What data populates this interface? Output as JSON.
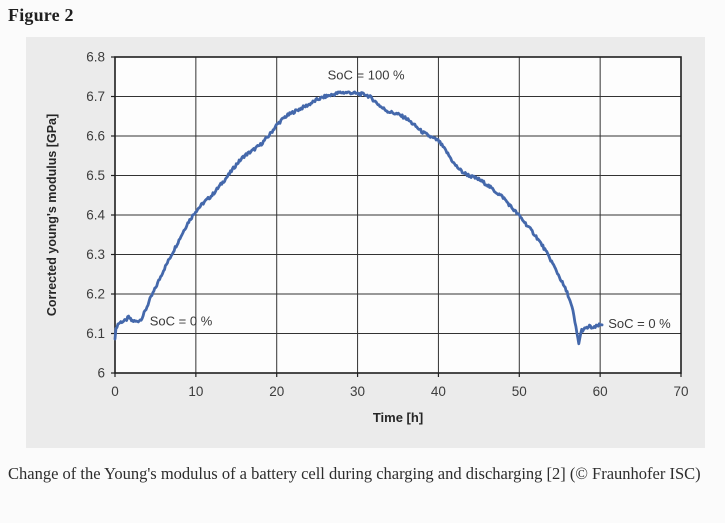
{
  "page": {
    "title": "Figure 2",
    "caption": "Change of the Young's modulus of a battery cell during charging and discharging [2] (© Fraunhofer ISC)"
  },
  "colors": {
    "page_bg": "#fbfbfb",
    "panel_bg": "#ebebeb",
    "plot_bg": "#fdfdfd",
    "grid": "#333333",
    "border": "#1f1f1f",
    "line": "#4468ab",
    "tick_text": "#3d3d3d",
    "axis_text": "#262626",
    "annotation_text": "#3a3a3a"
  },
  "chart_data": {
    "type": "line",
    "title": "",
    "xlabel": "Time [h]",
    "ylabel": "Corrected young's modulus [GPa]",
    "xlim": [
      0,
      70
    ],
    "ylim": [
      6.0,
      6.8
    ],
    "grid": true,
    "legend": "none",
    "xticks": {
      "values": [
        0,
        10,
        20,
        30,
        40,
        50,
        60,
        70
      ],
      "labels": [
        "0",
        "10",
        "20",
        "30",
        "40",
        "50",
        "60",
        "70"
      ]
    },
    "yticks": {
      "values": [
        6.8,
        6.7,
        6.6,
        6.5,
        6.4,
        6.3,
        6.2,
        6.1,
        6.0
      ],
      "labels": [
        "6.8",
        "6.7",
        "6.6",
        "6.5",
        "6.4",
        "6.3",
        "6.2",
        "6.1",
        "6"
      ]
    },
    "series": [
      {
        "name": "Corrected young's modulus",
        "points": [
          [
            0,
            6.09
          ],
          [
            0.15,
            6.115
          ],
          [
            0.4,
            6.125
          ],
          [
            0.8,
            6.13
          ],
          [
            1.3,
            6.132
          ],
          [
            1.7,
            6.142
          ],
          [
            2.0,
            6.133
          ],
          [
            2.6,
            6.13
          ],
          [
            3.1,
            6.134
          ],
          [
            3.4,
            6.142
          ],
          [
            3.8,
            6.16
          ],
          [
            4.3,
            6.185
          ],
          [
            5,
            6.215
          ],
          [
            6,
            6.26
          ],
          [
            7,
            6.3
          ],
          [
            8,
            6.34
          ],
          [
            9,
            6.38
          ],
          [
            10,
            6.41
          ],
          [
            11,
            6.432
          ],
          [
            12,
            6.45
          ],
          [
            13,
            6.475
          ],
          [
            14,
            6.5
          ],
          [
            15,
            6.528
          ],
          [
            16,
            6.55
          ],
          [
            17,
            6.563
          ],
          [
            18,
            6.578
          ],
          [
            19,
            6.6
          ],
          [
            20,
            6.628
          ],
          [
            21,
            6.648
          ],
          [
            22,
            6.66
          ],
          [
            23,
            6.67
          ],
          [
            24,
            6.68
          ],
          [
            25,
            6.692
          ],
          [
            26,
            6.7
          ],
          [
            27,
            6.705
          ],
          [
            27.8,
            6.71
          ],
          [
            29,
            6.71
          ],
          [
            30,
            6.707
          ],
          [
            31,
            6.705
          ],
          [
            31.6,
            6.698
          ],
          [
            32.3,
            6.685
          ],
          [
            33,
            6.672
          ],
          [
            33.8,
            6.662
          ],
          [
            35,
            6.655
          ],
          [
            36,
            6.645
          ],
          [
            37,
            6.628
          ],
          [
            38,
            6.61
          ],
          [
            39,
            6.598
          ],
          [
            40,
            6.588
          ],
          [
            41,
            6.56
          ],
          [
            42,
            6.528
          ],
          [
            43,
            6.508
          ],
          [
            44,
            6.498
          ],
          [
            45,
            6.49
          ],
          [
            46,
            6.477
          ],
          [
            47,
            6.46
          ],
          [
            48,
            6.445
          ],
          [
            49,
            6.42
          ],
          [
            50,
            6.398
          ],
          [
            51,
            6.373
          ],
          [
            52,
            6.348
          ],
          [
            53,
            6.318
          ],
          [
            54,
            6.282
          ],
          [
            55,
            6.242
          ],
          [
            56,
            6.2
          ],
          [
            56.6,
            6.16
          ],
          [
            57.0,
            6.115
          ],
          [
            57.35,
            6.075
          ],
          [
            57.7,
            6.108
          ],
          [
            58.2,
            6.112
          ],
          [
            58.7,
            6.118
          ],
          [
            59.2,
            6.113
          ],
          [
            59.7,
            6.12
          ],
          [
            60.3,
            6.122
          ]
        ]
      }
    ],
    "annotations": [
      {
        "text": "SoC = 0 %",
        "x": 4.3,
        "y": 6.132
      },
      {
        "text": "SoC = 100 %",
        "x": 26.3,
        "y": 6.754
      },
      {
        "text": "SoC = 0 %",
        "x": 61.0,
        "y": 6.125
      }
    ]
  }
}
